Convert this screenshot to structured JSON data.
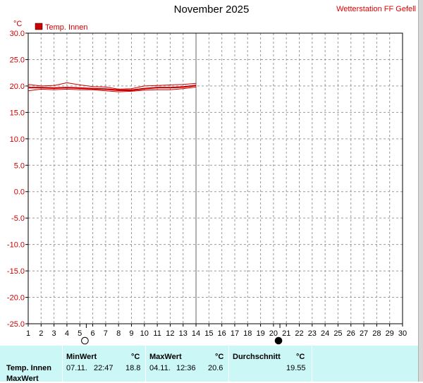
{
  "header": {
    "title": "November 2025",
    "station": "Wetterstation FF Gefell"
  },
  "chart_data": {
    "type": "line",
    "unit_label": "°C",
    "ylim": [
      -25,
      30
    ],
    "y_ticks": [
      "30.0",
      "25.0",
      "20.0",
      "15.0",
      "10.0",
      "5.0",
      "0.0",
      "-5.0",
      "-10.0",
      "-15.0",
      "-20.0",
      "-25.0"
    ],
    "xlim": [
      1,
      30
    ],
    "x_ticks": [
      "1",
      "2",
      "3",
      "4",
      "5",
      "6",
      "7",
      "8",
      "9",
      "10",
      "11",
      "12",
      "13",
      "14",
      "15",
      "16",
      "17",
      "18",
      "19",
      "20",
      "21",
      "22",
      "23",
      "24",
      "25",
      "26",
      "27",
      "28",
      "29",
      "30"
    ],
    "grid": true,
    "legend": {
      "position": "top-left",
      "label": "Temp. Innen",
      "color": "#cc0000"
    },
    "moon_markers": [
      {
        "x": 5.5,
        "phase": "full-moon"
      },
      {
        "x": 20.5,
        "phase": "new-moon"
      }
    ],
    "series": [
      {
        "name": "Temp. Innen",
        "role": "max",
        "x": [
          1,
          2,
          3,
          4,
          5,
          6,
          7,
          8,
          9,
          10,
          11,
          12,
          13,
          14
        ],
        "values": [
          20.3,
          20.0,
          20.1,
          20.6,
          20.2,
          19.9,
          19.8,
          19.4,
          19.5,
          20.0,
          20.1,
          20.2,
          20.3,
          20.5
        ]
      },
      {
        "name": "Temp. Innen",
        "role": "mean",
        "x": [
          1,
          2,
          3,
          4,
          5,
          6,
          7,
          8,
          9,
          10,
          11,
          12,
          13,
          14
        ],
        "values": [
          19.7,
          19.7,
          19.6,
          19.7,
          19.6,
          19.5,
          19.4,
          19.2,
          19.2,
          19.5,
          19.7,
          19.7,
          19.8,
          20.1
        ]
      },
      {
        "name": "Temp. Innen",
        "role": "min",
        "x": [
          1,
          2,
          3,
          4,
          5,
          6,
          7,
          8,
          9,
          10,
          11,
          12,
          13,
          14
        ],
        "values": [
          19.1,
          19.4,
          19.3,
          19.4,
          19.3,
          19.3,
          19.1,
          18.9,
          19.0,
          19.2,
          19.3,
          19.3,
          19.5,
          19.8
        ]
      }
    ]
  },
  "stats": {
    "row_label": "Temp. Innen",
    "row_label_2": "MaxWert",
    "min": {
      "header": "MinWert",
      "unit": "°C",
      "date": "07.11.",
      "time": "22:47",
      "value": "18.8"
    },
    "max": {
      "header": "MaxWert",
      "unit": "°C",
      "date": "04.11.",
      "time": "12:36",
      "value": "20.6"
    },
    "avg": {
      "header": "Durchschnitt",
      "unit": "°C",
      "value": "19.55"
    }
  }
}
